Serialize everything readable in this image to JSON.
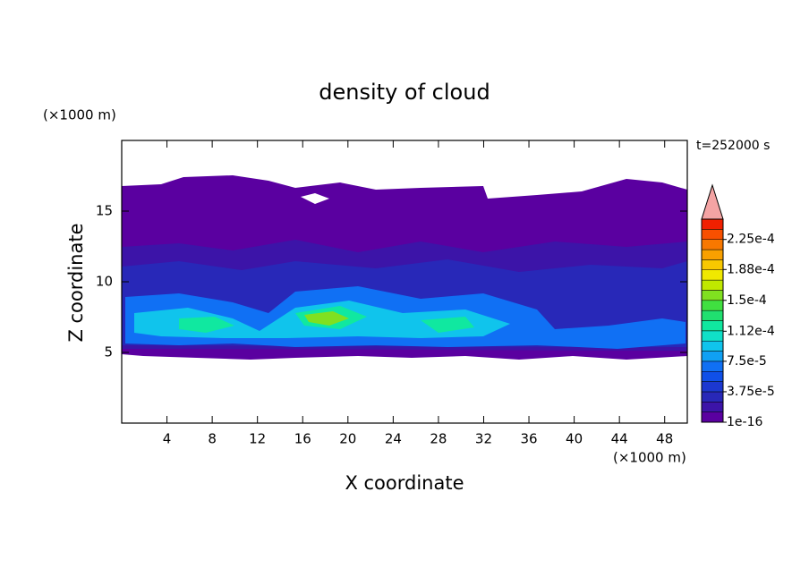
{
  "chart_data": {
    "type": "contour",
    "title": "density of cloud",
    "x_label": "X coordinate",
    "y_label": "Z coordinate",
    "x_unit": "(×1000 m)",
    "y_unit": "(×1000 m)",
    "time_label": "t=252000 s",
    "xlim": [
      0,
      50
    ],
    "ylim": [
      0,
      20
    ],
    "xticks": [
      4,
      8,
      12,
      16,
      20,
      24,
      28,
      32,
      36,
      40,
      44,
      48
    ],
    "yticks": [
      5,
      10,
      15
    ],
    "colorbar": {
      "lim": [
        1e-16,
        0.00025
      ],
      "colors": [
        "#5a00a0",
        "#3c14a8",
        "#2828b8",
        "#1c38d0",
        "#1050e8",
        "#1070f4",
        "#10a0f4",
        "#10c4ec",
        "#10e0c8",
        "#10e8a0",
        "#20e070",
        "#40e040",
        "#80e020",
        "#c0e800",
        "#f0e800",
        "#f8c800",
        "#f8a000",
        "#f87800",
        "#f85000",
        "#f02000"
      ],
      "over_color": "#f4a4a4",
      "ticks": [
        1e-16,
        {
          "value": 3.75e-05,
          "label": "3.75e-5"
        },
        {
          "value": 7.5e-05,
          "label": "7.5e-5"
        },
        {
          "value": 0.000112,
          "label": "1.12e-4"
        },
        {
          "value": 0.00015,
          "label": "1.5e-4"
        },
        {
          "value": 0.000188,
          "label": "1.88e-4"
        },
        {
          "value": 0.000225,
          "label": "2.25e-4"
        }
      ]
    }
  }
}
